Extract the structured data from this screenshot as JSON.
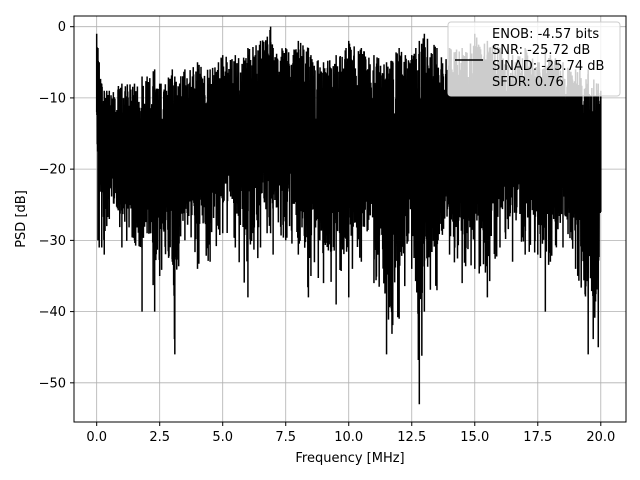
{
  "chart_data": {
    "type": "line",
    "title": "",
    "xlabel": "Frequency [MHz]",
    "ylabel": "PSD [dB]",
    "xlim": [
      -0.9,
      21.0
    ],
    "ylim": [
      -55.5,
      1.5
    ],
    "xticks": [
      0.0,
      2.5,
      5.0,
      7.5,
      10.0,
      12.5,
      15.0,
      17.5,
      20.0
    ],
    "xtick_labels": [
      "0.0",
      "2.5",
      "5.0",
      "7.5",
      "10.0",
      "12.5",
      "15.0",
      "17.5",
      "20.0"
    ],
    "yticks": [
      0,
      -10,
      -20,
      -30,
      -40,
      -50
    ],
    "ytick_labels": [
      "0",
      "−10",
      "−20",
      "−30",
      "−40",
      "−50"
    ],
    "grid": true,
    "legend_position": "top-right",
    "legend_entries": [
      "ENOB: -4.57 bits",
      "SNR: -25.72 dB",
      "SINAD: -25.74 dB",
      "SFDR: 0.76"
    ],
    "series_color": "#000000",
    "series": [
      {
        "x": [
          0.0,
          0.05,
          0.1,
          0.2,
          0.3,
          0.4,
          0.5,
          1.0,
          1.5,
          1.8,
          2.0,
          2.3,
          2.5,
          3.0,
          3.1,
          3.5,
          4.0,
          4.5,
          5.0,
          5.5,
          6.0,
          6.5,
          6.9,
          7.0,
          7.5,
          8.0,
          8.4,
          8.5,
          9.0,
          9.5,
          10.0,
          10.5,
          11.0,
          11.5,
          12.0,
          12.5,
          12.8,
          13.0,
          13.5,
          14.0,
          14.5,
          15.0,
          15.5,
          16.0,
          16.5,
          17.0,
          17.5,
          17.8,
          18.0,
          18.5,
          19.0,
          19.5,
          19.9,
          20.0
        ],
        "upper": [
          -1,
          -3,
          -5,
          -8,
          -9,
          -9,
          -9,
          -8,
          -8,
          -7,
          -7,
          -6,
          -8,
          -6,
          -7,
          -6,
          -5,
          -6,
          -4,
          -4,
          -3,
          -2,
          0,
          -3,
          -3,
          -2,
          -3,
          -4,
          -5,
          -4,
          -2,
          -3,
          -4,
          -5,
          -3,
          -4,
          -2,
          -1,
          -3,
          -3,
          -3,
          -1,
          -2,
          -3,
          -4,
          -3,
          -5,
          -3,
          -4,
          -5,
          -6,
          -6,
          -8,
          -9
        ],
        "lower": [
          -12,
          -30,
          -31,
          -31,
          -32,
          -28,
          -27,
          -31,
          -30,
          -40,
          -29,
          -40,
          -35,
          -33,
          -46,
          -30,
          -34,
          -33,
          -29,
          -31,
          -38,
          -31,
          -29,
          -32,
          -30,
          -32,
          -38,
          -35,
          -36,
          -39,
          -38,
          -33,
          -36,
          -46,
          -41,
          -34,
          -53,
          -40,
          -37,
          -32,
          -36,
          -34,
          -38,
          -31,
          -33,
          -32,
          -32,
          -40,
          -33,
          -31,
          -34,
          -46,
          -45,
          -26
        ]
      }
    ]
  }
}
